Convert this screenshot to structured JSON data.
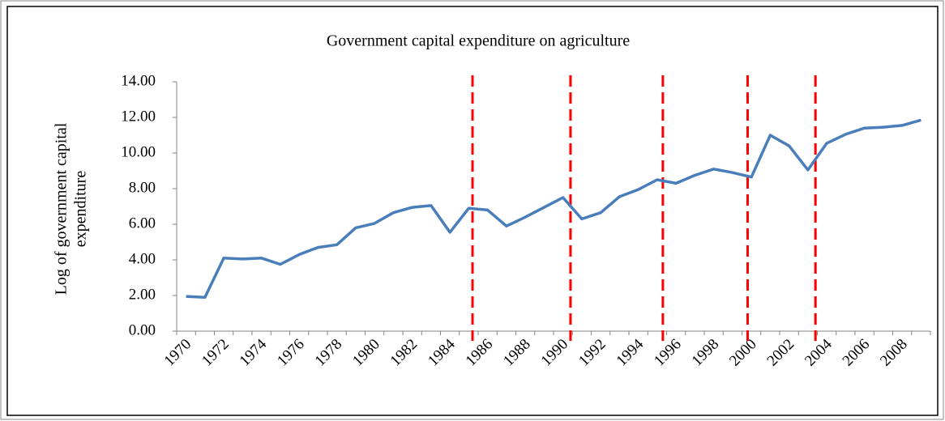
{
  "chart_data": {
    "type": "line",
    "title": "Government capital expenditure on agriculture",
    "ylabel": [
      "Log  of government capital",
      "expenditure"
    ],
    "categories": [
      "1970",
      null,
      "1972",
      null,
      "1974",
      null,
      "1976",
      null,
      "1978",
      null,
      "1980",
      null,
      "1982",
      null,
      "1984",
      null,
      "1986",
      null,
      "1988",
      null,
      "1990",
      null,
      "1992",
      null,
      "1994",
      null,
      "1996",
      null,
      "1998",
      null,
      "2000",
      null,
      "2002",
      null,
      "2004",
      null,
      "2006",
      null,
      "2008",
      null
    ],
    "series": [
      {
        "name": "Log of government capital expenditure",
        "color": "#4a7ebb",
        "values": [
          1.95,
          1.9,
          4.1,
          4.05,
          4.1,
          3.75,
          4.3,
          4.7,
          4.85,
          5.8,
          6.05,
          6.65,
          6.95,
          7.05,
          5.55,
          6.9,
          6.8,
          5.9,
          6.4,
          6.95,
          7.5,
          6.3,
          6.65,
          7.55,
          7.95,
          8.5,
          8.3,
          8.75,
          9.1,
          8.9,
          8.65,
          11.0,
          10.4,
          9.05,
          10.55,
          11.05,
          11.4,
          11.45,
          11.55,
          11.85
        ]
      }
    ],
    "breaks": {
      "color": "#ff0000",
      "x": [
        1985.2,
        1990.4,
        1995.3,
        1999.8,
        2003.4
      ]
    },
    "ylim": [
      0,
      14
    ],
    "yticks": [
      {
        "value": 0,
        "label": "0.00"
      },
      {
        "value": 2,
        "label": "2.00"
      },
      {
        "value": 4,
        "label": "4.00"
      },
      {
        "value": 6,
        "label": "6.00"
      },
      {
        "value": 8,
        "label": "8.00"
      },
      {
        "value": 10,
        "label": "10.00"
      },
      {
        "value": 12,
        "label": "12.00"
      },
      {
        "value": 14,
        "label": "14.00"
      }
    ],
    "grid": false
  }
}
